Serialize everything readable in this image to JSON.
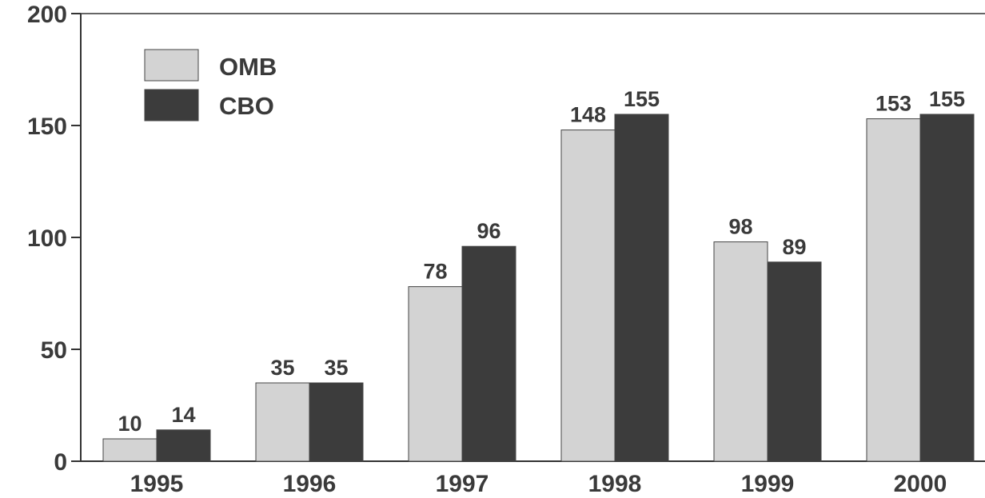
{
  "chart_data": {
    "type": "bar",
    "categories": [
      "1995",
      "1996",
      "1997",
      "1998",
      "1999",
      "2000"
    ],
    "series": [
      {
        "name": "OMB",
        "values": [
          10,
          35,
          78,
          148,
          98,
          153
        ],
        "labels": [
          "10",
          "35",
          "78",
          "148",
          "98",
          "153"
        ],
        "color": "#d3d3d3"
      },
      {
        "name": "CBO",
        "values": [
          14,
          35,
          96,
          155,
          89,
          155
        ],
        "labels": [
          "14",
          "35",
          "96",
          "155",
          "89",
          "155"
        ],
        "color": "#3c3c3c"
      }
    ],
    "ylim": [
      0,
      200
    ],
    "yticks": [
      0,
      50,
      100,
      150,
      200
    ],
    "ytick_labels": [
      "0",
      "50",
      "100",
      "150",
      "200"
    ],
    "grid": false,
    "legend_position": "top-left",
    "axis_color": "#333333",
    "text_color": "#3a3a3a"
  }
}
